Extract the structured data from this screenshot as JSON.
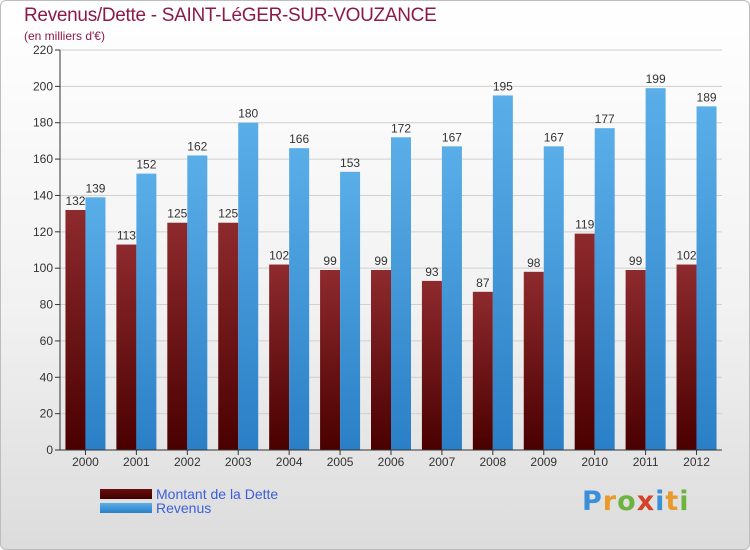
{
  "header": {
    "title": "Revenus/Dette - SAINT-LéGER-SUR-VOUZANCE",
    "subtitle": "(en milliers d'€)"
  },
  "chart_data": {
    "type": "bar",
    "categories": [
      "2000",
      "2001",
      "2002",
      "2003",
      "2004",
      "2005",
      "2006",
      "2007",
      "2008",
      "2009",
      "2010",
      "2011",
      "2012"
    ],
    "series": [
      {
        "name": "Montant de la Dette",
        "color": "#7a1a1a",
        "values": [
          132,
          113,
          125,
          125,
          102,
          99,
          99,
          93,
          87,
          98,
          119,
          99,
          102
        ]
      },
      {
        "name": "Revenus",
        "color": "#3d97dc",
        "values": [
          139,
          152,
          162,
          180,
          166,
          153,
          172,
          167,
          195,
          167,
          177,
          199,
          189
        ]
      }
    ],
    "ylim": [
      0,
      220
    ],
    "yticks": [
      0,
      20,
      40,
      60,
      80,
      100,
      120,
      140,
      160,
      180,
      200,
      220
    ],
    "grid": true,
    "legend": "bottom-left"
  },
  "legend": {
    "items": [
      {
        "label": "Montant de la Dette",
        "color": "#6b0f0f"
      },
      {
        "label": "Revenus",
        "color": "#3d97dc"
      }
    ]
  },
  "logo": {
    "text": "Proxiti",
    "letters": [
      {
        "ch": "P",
        "color": "#3a8fd9"
      },
      {
        "ch": "r",
        "color": "#e89a2c"
      },
      {
        "ch": "o",
        "color": "#6db33f"
      },
      {
        "ch": "x",
        "color": "#d6412a"
      },
      {
        "ch": "i",
        "color": "#3a8fd9"
      },
      {
        "ch": "t",
        "color": "#e89a2c"
      },
      {
        "ch": "i",
        "color": "#6db33f"
      }
    ]
  }
}
